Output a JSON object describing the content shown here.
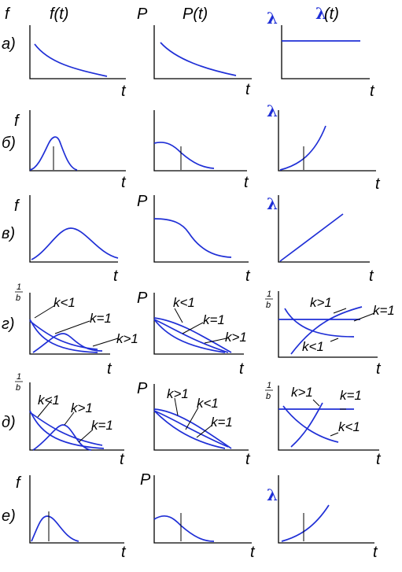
{
  "colors": {
    "curve": "#1f2fd6",
    "axis": "#000000",
    "text": "#000000"
  },
  "headers": {
    "f": "f(t)",
    "p": "P(t)",
    "lam": "λ(t)",
    "lam_glyph": "λ",
    "lam_suffix": "(t)"
  },
  "axis": {
    "t": "t",
    "f": "f",
    "p": "P",
    "lam": "λ",
    "frac_num": "1",
    "frac_den": "b"
  },
  "rows": [
    {
      "label": "а)",
      "f_axis": "f",
      "p_axis": "P",
      "l_axis": "λ"
    },
    {
      "label": "б)",
      "f_axis": "f",
      "p_axis": "",
      "l_axis": "λ"
    },
    {
      "label": "в)",
      "f_axis": "f",
      "p_axis": "P",
      "l_axis": "λ"
    },
    {
      "label": "г)",
      "f_axis": "1/b",
      "p_axis": "P",
      "l_axis": "1/b"
    },
    {
      "label": "д)",
      "f_axis": "1/b",
      "p_axis": "P",
      "l_axis": "1/b"
    },
    {
      "label": "е)",
      "f_axis": "f",
      "p_axis": "P",
      "l_axis": "λ"
    }
  ],
  "weibull": {
    "row_g": {
      "f": [
        "k<1",
        "k=1",
        "k>1"
      ],
      "p": [
        "k<1",
        "k=1",
        "k>1"
      ],
      "l": [
        "k>1",
        "k=1",
        "k<1"
      ]
    },
    "row_d": {
      "f": [
        "k<1",
        "k>1",
        "k=1"
      ],
      "p": [
        "k>1",
        "k<1",
        "k=1"
      ],
      "l": [
        "k>1",
        "k=1",
        "k<1"
      ]
    }
  }
}
